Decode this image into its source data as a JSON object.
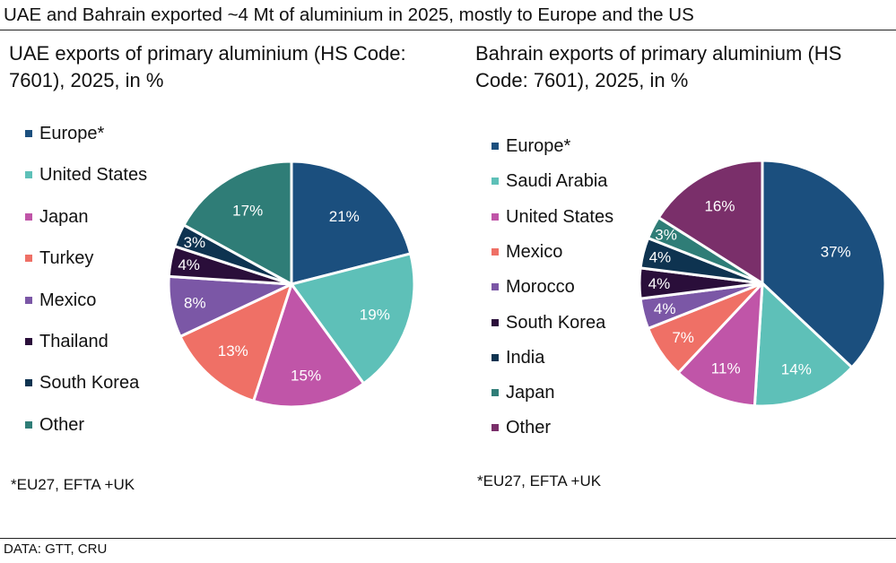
{
  "title": "UAE and Bahrain exported ~4 Mt of aluminium in 2025, mostly to Europe and the US",
  "source": "DATA: GTT, CRU",
  "chart_data": [
    {
      "type": "pie",
      "title": "UAE exports of primary aluminium (HS Code: 7601), 2025, in %",
      "note": "*EU27, EFTA +UK",
      "legend_position": "left",
      "categories": [
        "Europe*",
        "United States",
        "Japan",
        "Turkey",
        "Mexico",
        "Thailand",
        "South Korea",
        "Other"
      ],
      "values": [
        21,
        19,
        15,
        13,
        8,
        4,
        3,
        17
      ],
      "labels": [
        "21%",
        "19%",
        "15%",
        "13%",
        "8%",
        "4%",
        "3%",
        "17%"
      ],
      "colors": [
        "#1b4f7e",
        "#5ec0b8",
        "#c055a8",
        "#ef7066",
        "#7b57a6",
        "#2a0e3a",
        "#0e3350",
        "#2f7d77"
      ]
    },
    {
      "type": "pie",
      "title": "Bahrain exports of primary aluminium (HS Code: 7601), 2025, in %",
      "note": "*EU27, EFTA +UK",
      "legend_position": "left",
      "categories": [
        "Europe*",
        "Saudi Arabia",
        "United States",
        "Mexico",
        "Morocco",
        "South Korea",
        "India",
        "Japan",
        "Other"
      ],
      "values": [
        37,
        14,
        11,
        7,
        4,
        4,
        4,
        3,
        16
      ],
      "labels": [
        "37%",
        "14%",
        "11%",
        "7%",
        "4%",
        "4%",
        "4%",
        "3%",
        "16%"
      ],
      "colors": [
        "#1b4f7e",
        "#5ec0b8",
        "#c055a8",
        "#ef7066",
        "#7b57a6",
        "#2a0e3a",
        "#0e3350",
        "#2f7d77",
        "#7a2f6a"
      ]
    }
  ]
}
